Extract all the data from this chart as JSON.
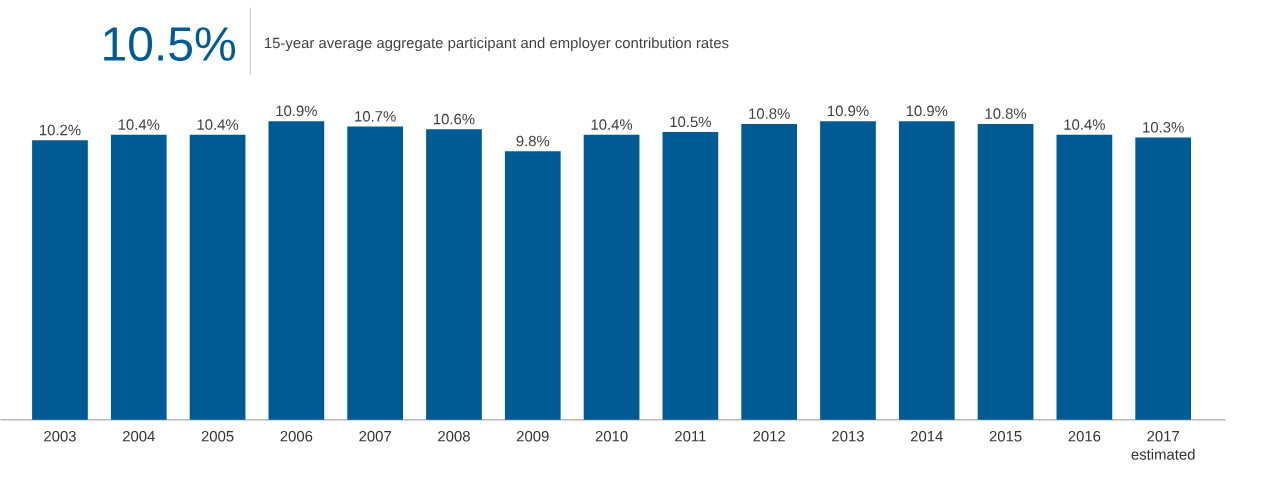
{
  "chart_data": {
    "type": "bar",
    "title": "10.5%",
    "subtitle": "15-year average aggregate participant and employer contribution rates",
    "categories": [
      "2003",
      "2004",
      "2005",
      "2006",
      "2007",
      "2008",
      "2009",
      "2010",
      "2011",
      "2012",
      "2013",
      "2014",
      "2015",
      "2016",
      "2017 estimated"
    ],
    "values": [
      10.2,
      10.4,
      10.4,
      10.9,
      10.7,
      10.6,
      9.8,
      10.4,
      10.5,
      10.8,
      10.9,
      10.9,
      10.8,
      10.4,
      10.3
    ],
    "value_labels": [
      "10.2%",
      "10.4%",
      "10.4%",
      "10.9%",
      "10.7%",
      "10.6%",
      "9.8%",
      "10.4%",
      "10.5%",
      "10.8%",
      "10.9%",
      "10.9%",
      "10.8%",
      "10.4%",
      "10.3%"
    ],
    "color": "#005a94"
  }
}
